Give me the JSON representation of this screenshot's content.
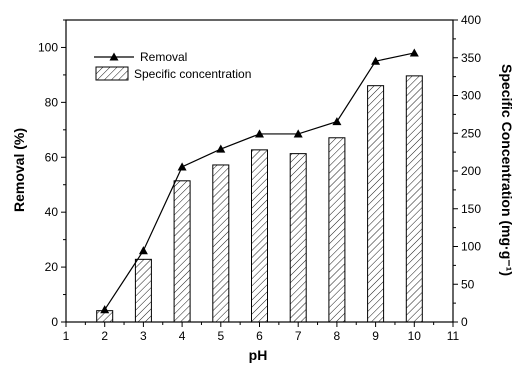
{
  "chart_data": {
    "type": "bar",
    "x": [
      2,
      3,
      4,
      5,
      6,
      7,
      8,
      9,
      10
    ],
    "xlabel": "pH",
    "ylabel": "Removal (%)",
    "y2label": "Specific Concentration (mg·g⁻¹)",
    "xlim": [
      1,
      11
    ],
    "ylim": [
      0,
      110
    ],
    "y2lim": [
      0,
      400
    ],
    "xticks": [
      "1",
      "2",
      "3",
      "4",
      "5",
      "6",
      "7",
      "8",
      "9",
      "10",
      "11"
    ],
    "yticks": [
      "0",
      "20",
      "40",
      "60",
      "80",
      "100"
    ],
    "y2ticks": [
      "0",
      "50",
      "100",
      "150",
      "200",
      "250",
      "300",
      "350",
      "400"
    ],
    "legend_position": "top-left",
    "grid": false,
    "series": [
      {
        "name": "Removal",
        "type": "line",
        "axis": "left",
        "marker": "triangle",
        "values": [
          4.5,
          26,
          56.5,
          63,
          68.5,
          68.5,
          73,
          95,
          98
        ]
      },
      {
        "name": "Specific concentration",
        "type": "bar",
        "axis": "right",
        "pattern": "hatched",
        "values": [
          15,
          83,
          187,
          208,
          228,
          223,
          244,
          313,
          326
        ]
      }
    ]
  }
}
